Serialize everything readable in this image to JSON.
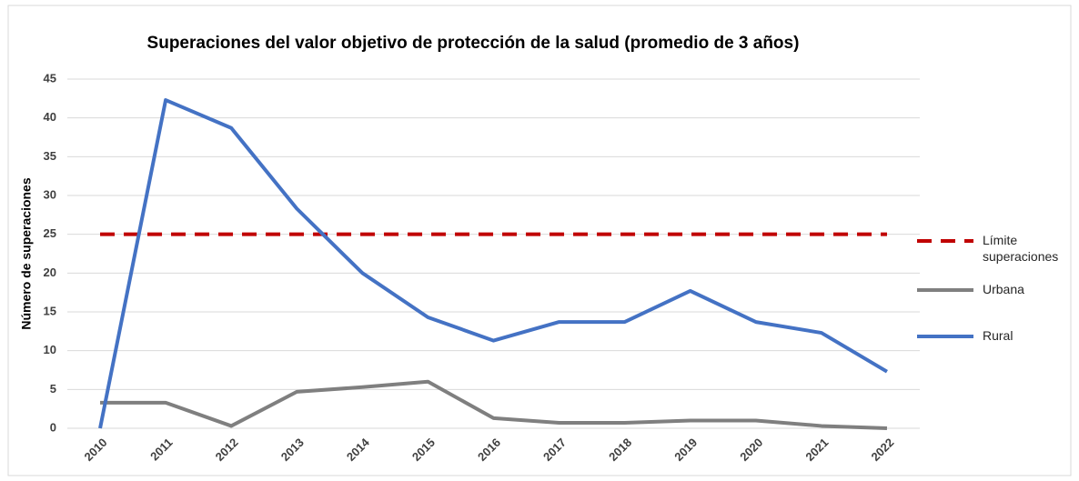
{
  "chart_data": {
    "type": "line",
    "title": "Superaciones del valor objetivo de protección de la salud  (promedio de 3 años)",
    "y_label": "Número de superaciones",
    "categories": [
      "2010",
      "2011",
      "2012",
      "2013",
      "2014",
      "2015",
      "2016",
      "2017",
      "2018",
      "2019",
      "2020",
      "2021",
      "2022"
    ],
    "series": [
      {
        "name": "Límite superaciones",
        "color": "#c00000",
        "line_style": "dashed",
        "values": [
          25,
          25,
          25,
          25,
          25,
          25,
          25,
          25,
          25,
          25,
          25,
          25,
          25
        ]
      },
      {
        "name": "Urbana",
        "color": "#7f7f7f",
        "line_style": "solid",
        "values": [
          3.3,
          3.3,
          0.3,
          4.7,
          5.3,
          6,
          1.3,
          0.7,
          0.7,
          1,
          1,
          0.3,
          0
        ]
      },
      {
        "name": "Rural",
        "color": "#4472c4",
        "line_style": "solid",
        "values": [
          0,
          42.3,
          38.7,
          28.3,
          20,
          14.3,
          11.3,
          13.7,
          13.7,
          17.7,
          13.7,
          12.3,
          7.3
        ]
      }
    ],
    "ylim": [
      0,
      45
    ],
    "yticks": [
      0,
      5,
      10,
      15,
      20,
      25,
      30,
      35,
      40,
      45
    ],
    "grid": true,
    "legend": "right"
  }
}
